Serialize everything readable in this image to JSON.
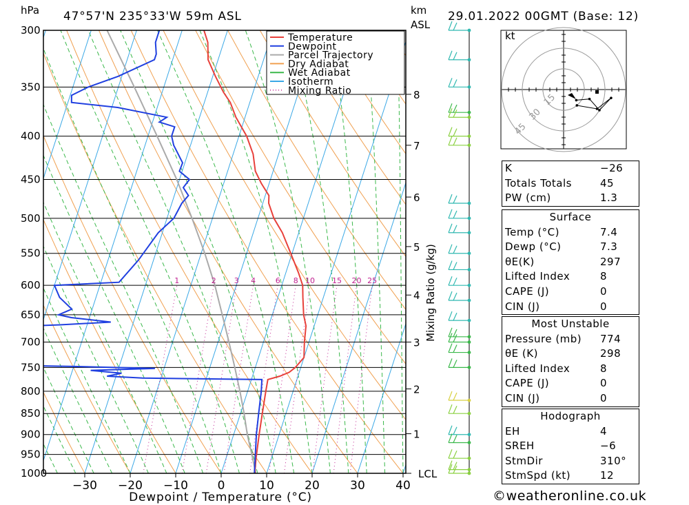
{
  "header": {
    "pressure_unit": "hPa",
    "location": "47°57'N  235°33'W  59m  ASL",
    "height_unit": "km",
    "height_ref": "ASL",
    "datetime": "29.01.2022  00GMT  (Base: 12)"
  },
  "chart_data": {
    "type": "line",
    "title": "",
    "xlabel": "Dewpoint / Temperature (°C)",
    "ylabel": "hPa",
    "x_ticks": [
      -30,
      -20,
      -10,
      0,
      10,
      20,
      30,
      40
    ],
    "x_tick_labels": [
      "−30",
      "−20",
      "−10",
      "0",
      "10",
      "20",
      "30",
      "40"
    ],
    "y_ticks": [
      300,
      350,
      400,
      450,
      500,
      550,
      600,
      650,
      700,
      750,
      800,
      850,
      900,
      950,
      1000
    ],
    "ylim": [
      300,
      1000
    ],
    "skew_deg_per_axis": 40,
    "km_ticks": [
      {
        "km": "8",
        "p": 357
      },
      {
        "km": "7",
        "p": 410
      },
      {
        "km": "6",
        "p": 472
      },
      {
        "km": "5",
        "p": 540
      },
      {
        "km": "4",
        "p": 616
      },
      {
        "km": "3",
        "p": 700
      },
      {
        "km": "2",
        "p": 795
      },
      {
        "km": "1",
        "p": 898
      },
      {
        "km": "LCL",
        "p": 1000
      }
    ],
    "right_axis_label": "Mixing Ratio (g/kg)",
    "mixing_ratio_labels": [
      "1",
      "2",
      "3",
      "4",
      "6",
      "8",
      "10",
      "15",
      "20",
      "25"
    ],
    "mixing_ratio_values": [
      1,
      2,
      3,
      4,
      6,
      8,
      10,
      15,
      20,
      25
    ],
    "legend": {
      "position": "top-center",
      "entries": [
        {
          "name": "Temperature",
          "color": "#e8403a",
          "dash": false
        },
        {
          "name": "Dewpoint",
          "color": "#1f3fe0",
          "dash": false
        },
        {
          "name": "Parcel Trajectory",
          "color": "#aaaaaa",
          "dash": false
        },
        {
          "name": "Dry Adiabat",
          "color": "#f0a050",
          "dash": false
        },
        {
          "name": "Wet Adiabat",
          "color": "#3ab84a",
          "dash": false
        },
        {
          "name": "Isotherm",
          "color": "#3aa8e6",
          "dash": false
        },
        {
          "name": "Mixing Ratio",
          "color": "#c02090",
          "dash": true
        }
      ]
    },
    "series": [
      {
        "name": "Temperature",
        "color": "#e8403a",
        "points": [
          [
            1000,
            7.4
          ],
          [
            960,
            6.6
          ],
          [
            900,
            5.6
          ],
          [
            850,
            4.8
          ],
          [
            800,
            4.0
          ],
          [
            775,
            3.6
          ],
          [
            768,
            6.0
          ],
          [
            760,
            7.8
          ],
          [
            750,
            8.8
          ],
          [
            730,
            10.0
          ],
          [
            700,
            9.0
          ],
          [
            670,
            8.2
          ],
          [
            650,
            6.9
          ],
          [
            620,
            5.5
          ],
          [
            600,
            4.6
          ],
          [
            580,
            2.8
          ],
          [
            550,
            -0.3
          ],
          [
            520,
            -3.6
          ],
          [
            500,
            -6.5
          ],
          [
            480,
            -8.7
          ],
          [
            470,
            -9.2
          ],
          [
            455,
            -11.7
          ],
          [
            440,
            -13.9
          ],
          [
            420,
            -15.6
          ],
          [
            400,
            -18.3
          ],
          [
            380,
            -22.0
          ],
          [
            365,
            -24.3
          ],
          [
            355,
            -26.5
          ],
          [
            340,
            -29.4
          ],
          [
            325,
            -32.2
          ],
          [
            310,
            -33.5
          ],
          [
            300,
            -35.2
          ]
        ]
      },
      {
        "name": "Dewpoint",
        "color": "#1f3fe0",
        "points": [
          [
            1000,
            7.3
          ],
          [
            960,
            6.4
          ],
          [
            900,
            5.0
          ],
          [
            850,
            4.0
          ],
          [
            800,
            3.0
          ],
          [
            775,
            2.3
          ],
          [
            772,
            -24.0
          ],
          [
            768,
            -32.0
          ],
          [
            762,
            -29.0
          ],
          [
            756,
            -36.0
          ],
          [
            752,
            -22.0
          ],
          [
            748,
            -40.0
          ],
          [
            745,
            -58.0
          ],
          [
            720,
            -62.0
          ],
          [
            700,
            -61.0
          ],
          [
            690,
            -62.0
          ],
          [
            672,
            -60.0
          ],
          [
            668,
            -46.0
          ],
          [
            663,
            -35.0
          ],
          [
            655,
            -44.0
          ],
          [
            650,
            -47.0
          ],
          [
            640,
            -44.5
          ],
          [
            620,
            -48.0
          ],
          [
            600,
            -50.0
          ],
          [
            595,
            -36.0
          ],
          [
            560,
            -33.3
          ],
          [
            520,
            -30.9
          ],
          [
            500,
            -28.5
          ],
          [
            480,
            -27.8
          ],
          [
            470,
            -26.9
          ],
          [
            460,
            -28.6
          ],
          [
            450,
            -27.8
          ],
          [
            440,
            -30.6
          ],
          [
            430,
            -30.5
          ],
          [
            410,
            -33.7
          ],
          [
            400,
            -34.8
          ],
          [
            390,
            -34.8
          ],
          [
            385,
            -38.5
          ],
          [
            380,
            -37.2
          ],
          [
            370,
            -48.7
          ],
          [
            365,
            -59.2
          ],
          [
            358,
            -59.7
          ],
          [
            350,
            -56.6
          ],
          [
            340,
            -50.8
          ],
          [
            325,
            -44.0
          ],
          [
            320,
            -44.0
          ],
          [
            310,
            -45.0
          ],
          [
            300,
            -45.0
          ]
        ]
      },
      {
        "name": "Parcel Trajectory",
        "color": "#aaaaaa",
        "points": [
          [
            1000,
            7.6
          ],
          [
            950,
            5.4
          ],
          [
            900,
            3.0
          ],
          [
            850,
            0.8
          ],
          [
            800,
            -1.7
          ],
          [
            750,
            -4.5
          ],
          [
            700,
            -7.6
          ],
          [
            650,
            -11.0
          ],
          [
            600,
            -14.7
          ],
          [
            550,
            -19.2
          ],
          [
            500,
            -24.5
          ],
          [
            450,
            -30.6
          ],
          [
            400,
            -38.0
          ],
          [
            350,
            -46.5
          ],
          [
            300,
            -56.5
          ]
        ]
      }
    ]
  },
  "wind_barbs": [
    {
      "p": 300,
      "color": "#2fb8b0"
    },
    {
      "p": 325,
      "color": "#2fb8b0"
    },
    {
      "p": 350,
      "color": "#2fb8b0"
    },
    {
      "p": 375,
      "color": "#3ab84a"
    },
    {
      "p": 380,
      "color": "#8ad040"
    },
    {
      "p": 400,
      "color": "#8ad040"
    },
    {
      "p": 410,
      "color": "#8ad040"
    },
    {
      "p": 480,
      "color": "#2fb8b0"
    },
    {
      "p": 500,
      "color": "#2fb8b0"
    },
    {
      "p": 520,
      "color": "#2fb8b0"
    },
    {
      "p": 550,
      "color": "#2fb8b0"
    },
    {
      "p": 575,
      "color": "#2fb8b0"
    },
    {
      "p": 600,
      "color": "#2fb8b0"
    },
    {
      "p": 625,
      "color": "#2fb8b0"
    },
    {
      "p": 660,
      "color": "#2fb8b0"
    },
    {
      "p": 690,
      "color": "#3ab84a"
    },
    {
      "p": 700,
      "color": "#3ab84a"
    },
    {
      "p": 720,
      "color": "#3ab84a"
    },
    {
      "p": 750,
      "color": "#3ab84a"
    },
    {
      "p": 820,
      "color": "#d8d040"
    },
    {
      "p": 850,
      "color": "#8ad040"
    },
    {
      "p": 900,
      "color": "#2fb8b0"
    },
    {
      "p": 920,
      "color": "#3ab84a"
    },
    {
      "p": 960,
      "color": "#8ad040"
    },
    {
      "p": 990,
      "color": "#8ad040"
    },
    {
      "p": 1000,
      "color": "#8ad040"
    }
  ],
  "hodograph": {
    "unit": "kt",
    "ring_labels": [
      "15",
      "30",
      "45"
    ],
    "ring_values": [
      15,
      30,
      45
    ],
    "winds": [
      [
        310,
        12
      ],
      [
        290,
        20
      ],
      [
        300,
        30
      ],
      [
        280,
        35
      ],
      [
        300,
        28
      ],
      [
        320,
        15
      ]
    ]
  },
  "indices": {
    "rows": [
      {
        "label": "K",
        "value": "−26"
      },
      {
        "label": "Totals Totals",
        "value": "45"
      },
      {
        "label": "PW (cm)",
        "value": "1.3"
      }
    ]
  },
  "surface": {
    "heading": "Surface",
    "rows": [
      {
        "label": "Temp (°C)",
        "value": "7.4"
      },
      {
        "label": "Dewp (°C)",
        "value": "7.3"
      },
      {
        "label": "θE(K)",
        "value": "297"
      },
      {
        "label": "Lifted Index",
        "value": "8"
      },
      {
        "label": "CAPE (J)",
        "value": "0"
      },
      {
        "label": "CIN (J)",
        "value": "0"
      }
    ]
  },
  "most_unstable": {
    "heading": "Most Unstable",
    "rows": [
      {
        "label": "Pressure (mb)",
        "value": "774"
      },
      {
        "label": "θE (K)",
        "value": "298"
      },
      {
        "label": "Lifted Index",
        "value": "8"
      },
      {
        "label": "CAPE (J)",
        "value": "0"
      },
      {
        "label": "CIN (J)",
        "value": "0"
      }
    ]
  },
  "hodo_table": {
    "heading": "Hodograph",
    "rows": [
      {
        "label": "EH",
        "value": "4"
      },
      {
        "label": "SREH",
        "value": "−6"
      },
      {
        "label": "StmDir",
        "value": "310°"
      },
      {
        "label": "StmSpd (kt)",
        "value": "12"
      }
    ]
  },
  "footer": {
    "copyright": "©weatheronline.co.uk"
  }
}
